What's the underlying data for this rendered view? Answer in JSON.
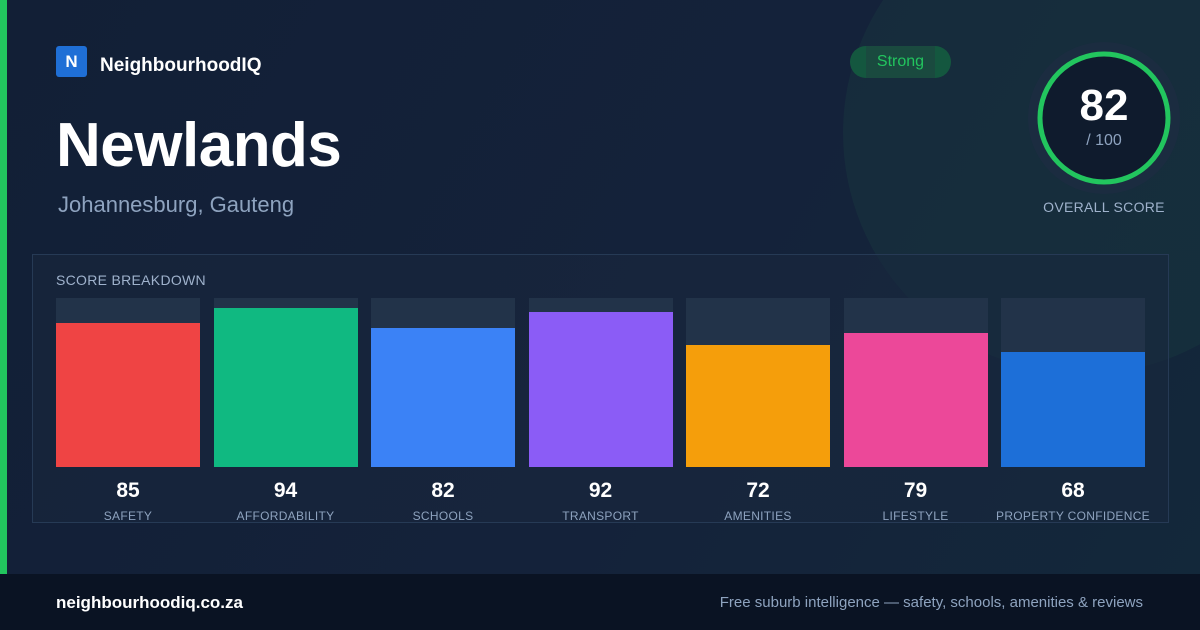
{
  "brand": {
    "logo_letter": "N",
    "name": "NeighbourhoodIQ",
    "color": "#1f6fd6"
  },
  "accent_color": "#22c55e",
  "badge": {
    "label": "Strong",
    "color": "#22c55e"
  },
  "suburb": {
    "name": "Newlands",
    "location": "Johannesburg, Gauteng"
  },
  "overall_score": {
    "value": "82",
    "denominator": "/ 100",
    "caption": "OVERALL SCORE",
    "fraction": 0.82,
    "ring_color": "#22c55e",
    "track_color": "#1e3045"
  },
  "breakdown": {
    "title": "SCORE BREAKDOWN",
    "max": 100
  },
  "chart_data": {
    "type": "bar",
    "title": "SCORE BREAKDOWN",
    "categories": [
      "SAFETY",
      "AFFORDABILITY",
      "SCHOOLS",
      "TRANSPORT",
      "AMENITIES",
      "LIFESTYLE",
      "PROPERTY CONFIDENCE"
    ],
    "values": [
      85,
      94,
      82,
      92,
      72,
      79,
      68
    ],
    "colors": [
      "#ef4444",
      "#10b981",
      "#3b82f6",
      "#8b5cf6",
      "#f59e0b",
      "#ec4899",
      "#1d6fd8"
    ],
    "ylim": [
      0,
      100
    ],
    "grid": false
  },
  "footer": {
    "url": "neighbourhoodiq.co.za",
    "tagline": "Free suburb intelligence — safety, schools, amenities & reviews"
  }
}
